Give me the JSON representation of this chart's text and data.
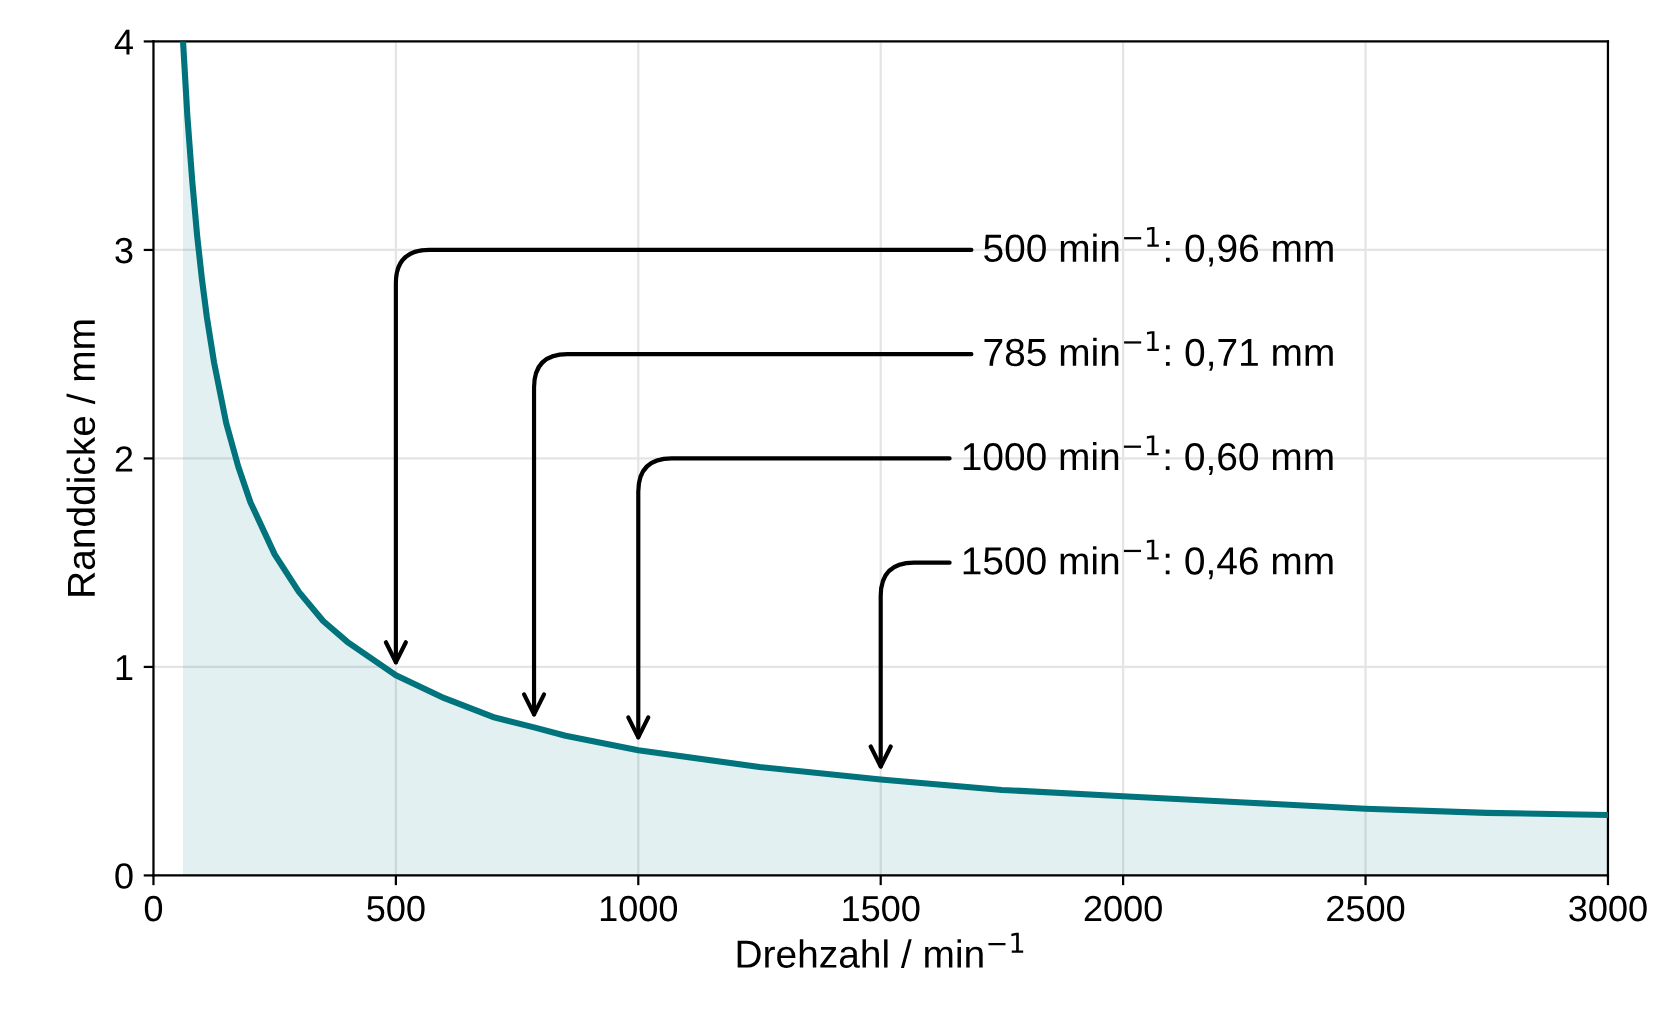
{
  "chart_data": {
    "type": "area",
    "xlabel": "Drehzahl / min$^{−1}$",
    "ylabel": "Randdicke / mm",
    "series": [
      {
        "color": "#00737c",
        "x": [
          61,
          70,
          80,
          90,
          100,
          110,
          125,
          150,
          175,
          200,
          250,
          300,
          350,
          400,
          500,
          600,
          700,
          785,
          850,
          1000,
          1250,
          1500,
          1750,
          2000,
          2250,
          2500,
          2750,
          3000
        ],
        "values": [
          4.0,
          3.64,
          3.33,
          3.07,
          2.86,
          2.68,
          2.46,
          2.17,
          1.96,
          1.79,
          1.54,
          1.36,
          1.22,
          1.12,
          0.96,
          0.85,
          0.76,
          0.71,
          0.67,
          0.6,
          0.52,
          0.46,
          0.41,
          0.38,
          0.35,
          0.32,
          0.3,
          0.29
        ]
      }
    ],
    "xlim": [
      0,
      3000
    ],
    "ylim": [
      0,
      4
    ],
    "xticks": [
      0,
      500,
      1000,
      1500,
      2000,
      2500,
      3000
    ],
    "yticks": [
      0,
      1,
      2,
      3,
      4
    ],
    "grid": true,
    "annotations": [
      {
        "text": "500 min$^{−1}$: 0,96 mm",
        "x": 500,
        "y": 0.96
      },
      {
        "text": "785 min$^{−1}$: 0,71 mm",
        "x": 785,
        "y": 0.71
      },
      {
        "text": "1000 min$^{−1}$: 0,60 mm",
        "x": 1000,
        "y": 0.6
      },
      {
        "text": "1500 min$^{−1}$: 0,46 mm",
        "x": 1500,
        "y": 0.46
      }
    ]
  }
}
